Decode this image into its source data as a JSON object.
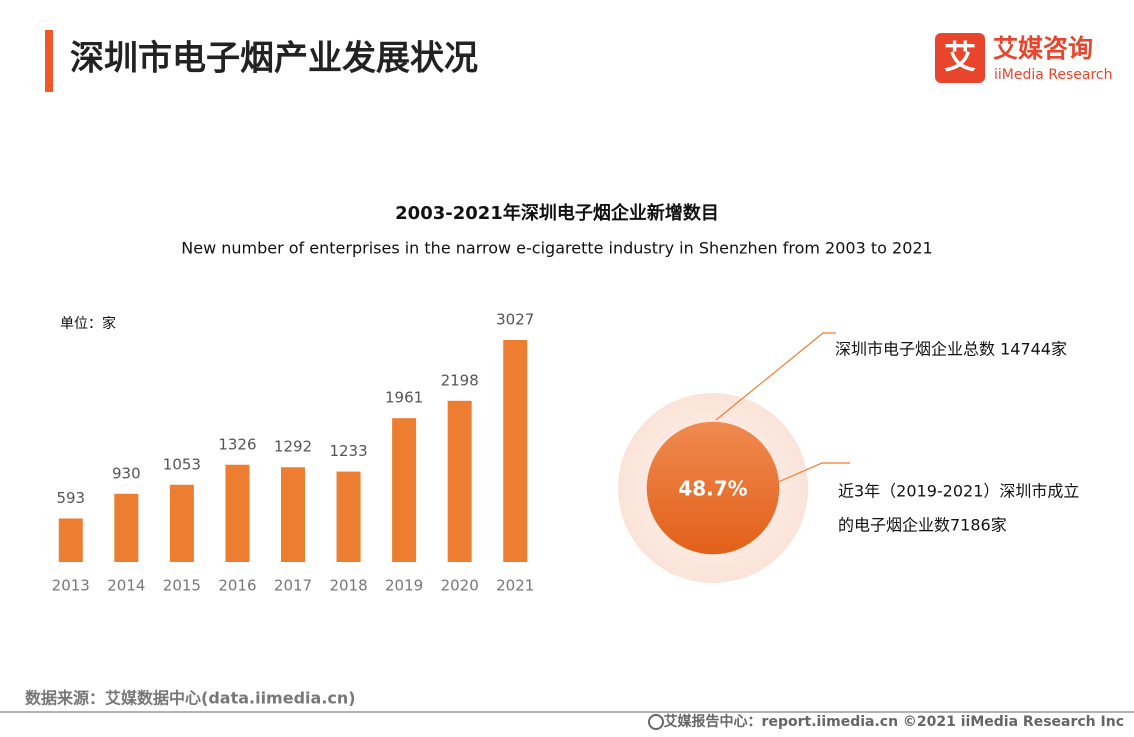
{
  "header": {
    "title": "深圳市电子烟产业发展状况",
    "logo_mark": "艾",
    "logo_name": "艾媒咨询",
    "logo_sub": "iiMedia Research"
  },
  "chart_data": [
    {
      "type": "bar",
      "title": "2003-2021年深圳电子烟企业新增数目",
      "subtitle": "New number of enterprises in the narrow e-cigarette industry in Shenzhen from 2003 to 2021",
      "unit": "单位：家",
      "categories": [
        "2013",
        "2014",
        "2015",
        "2016",
        "2017",
        "2018",
        "2019",
        "2020",
        "2021"
      ],
      "values": [
        593,
        930,
        1053,
        1326,
        1292,
        1233,
        1961,
        2198,
        3027
      ],
      "color": "#ed7d31"
    },
    {
      "type": "proportion",
      "values": [
        48.7
      ],
      "value_labels": [
        "48.7%"
      ],
      "color": "#e8702a",
      "background": "#fbe3d8",
      "annotations": [
        "深圳市电子烟企业总数 14744家",
        "近3年（2019-2021）深圳市成立",
        "的电子烟企业数7186家"
      ]
    }
  ],
  "footer": {
    "source": "数据来源：艾媒数据中心(data.iimedia.cn)",
    "copyright": "艾媒报告中心：report.iimedia.cn  ©2021  iiMedia Research  Inc"
  }
}
